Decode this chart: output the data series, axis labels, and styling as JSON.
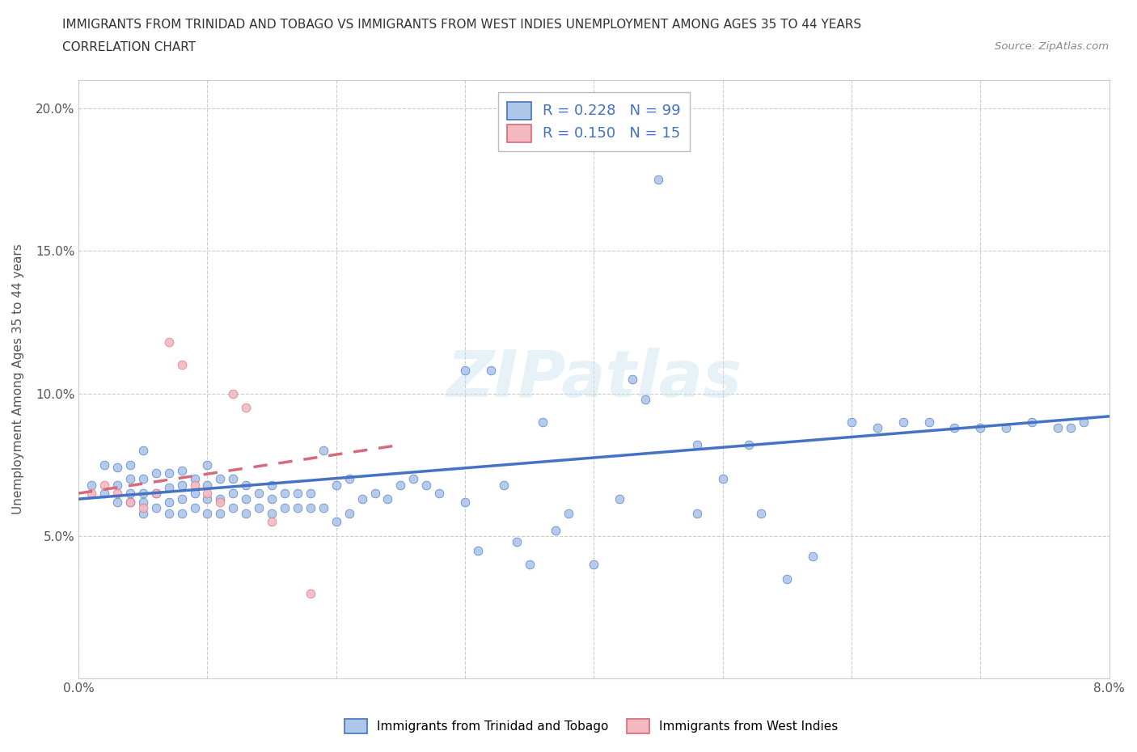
{
  "title_line1": "IMMIGRANTS FROM TRINIDAD AND TOBAGO VS IMMIGRANTS FROM WEST INDIES UNEMPLOYMENT AMONG AGES 35 TO 44 YEARS",
  "title_line2": "CORRELATION CHART",
  "source_text": "Source: ZipAtlas.com",
  "ylabel": "Unemployment Among Ages 35 to 44 years",
  "xlim": [
    0.0,
    0.08
  ],
  "ylim": [
    0.0,
    0.21
  ],
  "xtick_vals": [
    0.0,
    0.01,
    0.02,
    0.03,
    0.04,
    0.05,
    0.06,
    0.07,
    0.08
  ],
  "xtick_labels": [
    "0.0%",
    "",
    "",
    "",
    "",
    "",
    "",
    "",
    "8.0%"
  ],
  "ytick_vals": [
    0.0,
    0.05,
    0.1,
    0.15,
    0.2
  ],
  "ytick_labels": [
    "",
    "5.0%",
    "10.0%",
    "15.0%",
    "20.0%"
  ],
  "legend_label1": "Immigrants from Trinidad and Tobago",
  "legend_label2": "Immigrants from West Indies",
  "R1": 0.228,
  "N1": 99,
  "R2": 0.15,
  "N2": 15,
  "color_blue": "#aec6e8",
  "color_pink": "#f4b8c0",
  "edge_blue": "#4472c4",
  "edge_pink": "#d46a7a",
  "line_blue": "#4472c4",
  "line_pink": "#d46a7a",
  "watermark": "ZIPatlas",
  "blue_x": [
    0.001,
    0.002,
    0.002,
    0.003,
    0.003,
    0.003,
    0.004,
    0.004,
    0.004,
    0.004,
    0.005,
    0.005,
    0.005,
    0.005,
    0.005,
    0.006,
    0.006,
    0.006,
    0.007,
    0.007,
    0.007,
    0.007,
    0.008,
    0.008,
    0.008,
    0.008,
    0.009,
    0.009,
    0.009,
    0.01,
    0.01,
    0.01,
    0.01,
    0.011,
    0.011,
    0.011,
    0.012,
    0.012,
    0.012,
    0.013,
    0.013,
    0.013,
    0.014,
    0.014,
    0.015,
    0.015,
    0.015,
    0.016,
    0.016,
    0.017,
    0.017,
    0.018,
    0.018,
    0.019,
    0.019,
    0.02,
    0.02,
    0.021,
    0.021,
    0.022,
    0.023,
    0.024,
    0.025,
    0.026,
    0.027,
    0.028,
    0.03,
    0.031,
    0.033,
    0.034,
    0.035,
    0.037,
    0.038,
    0.04,
    0.042,
    0.045,
    0.048,
    0.05,
    0.053,
    0.055,
    0.057,
    0.06,
    0.062,
    0.064,
    0.066,
    0.068,
    0.07,
    0.072,
    0.074,
    0.076,
    0.077,
    0.078,
    0.043,
    0.03,
    0.032,
    0.036,
    0.044,
    0.048,
    0.052
  ],
  "blue_y": [
    0.068,
    0.065,
    0.075,
    0.062,
    0.068,
    0.074,
    0.062,
    0.065,
    0.07,
    0.075,
    0.058,
    0.062,
    0.065,
    0.07,
    0.08,
    0.06,
    0.065,
    0.072,
    0.058,
    0.062,
    0.067,
    0.072,
    0.058,
    0.063,
    0.068,
    0.073,
    0.06,
    0.065,
    0.07,
    0.058,
    0.063,
    0.068,
    0.075,
    0.058,
    0.063,
    0.07,
    0.06,
    0.065,
    0.07,
    0.058,
    0.063,
    0.068,
    0.06,
    0.065,
    0.058,
    0.063,
    0.068,
    0.06,
    0.065,
    0.06,
    0.065,
    0.06,
    0.065,
    0.06,
    0.08,
    0.055,
    0.068,
    0.058,
    0.07,
    0.063,
    0.065,
    0.063,
    0.068,
    0.07,
    0.068,
    0.065,
    0.062,
    0.045,
    0.068,
    0.048,
    0.04,
    0.052,
    0.058,
    0.04,
    0.063,
    0.175,
    0.058,
    0.07,
    0.058,
    0.035,
    0.043,
    0.09,
    0.088,
    0.09,
    0.09,
    0.088,
    0.088,
    0.088,
    0.09,
    0.088,
    0.088,
    0.09,
    0.105,
    0.108,
    0.108,
    0.09,
    0.098,
    0.082,
    0.082
  ],
  "pink_x": [
    0.001,
    0.002,
    0.003,
    0.004,
    0.005,
    0.006,
    0.007,
    0.008,
    0.009,
    0.01,
    0.011,
    0.012,
    0.013,
    0.015,
    0.018
  ],
  "pink_y": [
    0.065,
    0.068,
    0.065,
    0.062,
    0.06,
    0.065,
    0.118,
    0.11,
    0.068,
    0.065,
    0.062,
    0.1,
    0.095,
    0.055,
    0.03
  ],
  "trend_blue_x0": 0.0,
  "trend_blue_x1": 0.08,
  "trend_blue_y0": 0.063,
  "trend_blue_y1": 0.092,
  "trend_pink_x0": 0.0,
  "trend_pink_x1": 0.025,
  "trend_pink_y0": 0.065,
  "trend_pink_y1": 0.082
}
